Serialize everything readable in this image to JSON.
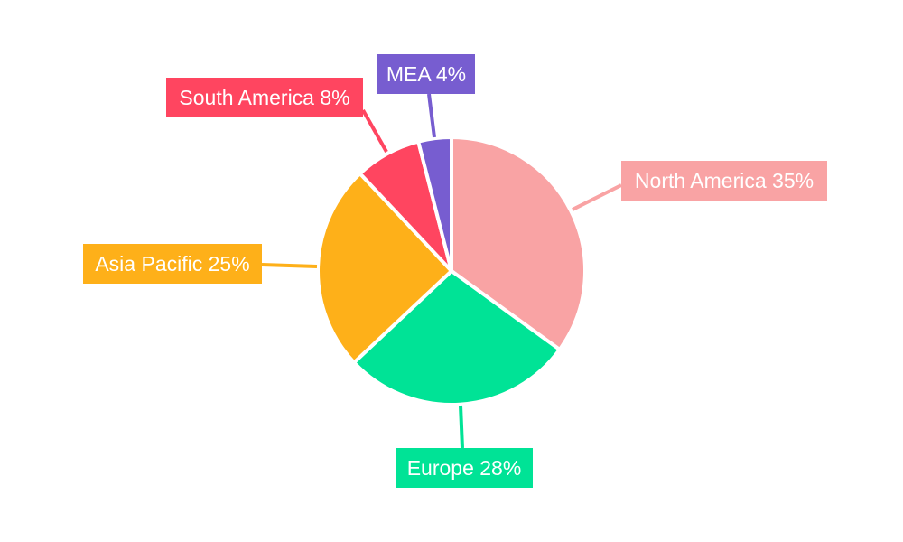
{
  "chart_data": {
    "type": "pie",
    "start_angle": "top, clockwise",
    "slices": [
      {
        "label": "North America",
        "value": 35,
        "text": "North America 35%",
        "color": "#F9A3A4"
      },
      {
        "label": "Europe",
        "value": 28,
        "text": "Europe 28%",
        "color": "#00E396"
      },
      {
        "label": "Asia Pacific",
        "value": 25,
        "text": "Asia Pacific 25%",
        "color": "#FEB019"
      },
      {
        "label": "South America",
        "value": 8,
        "text": "South America 8%",
        "color": "#FF4560"
      },
      {
        "label": "MEA",
        "value": 4,
        "text": "MEA 4%",
        "color": "#775DD0"
      }
    ],
    "legend": "none",
    "data_labels": "outside boxes with leader lines"
  }
}
